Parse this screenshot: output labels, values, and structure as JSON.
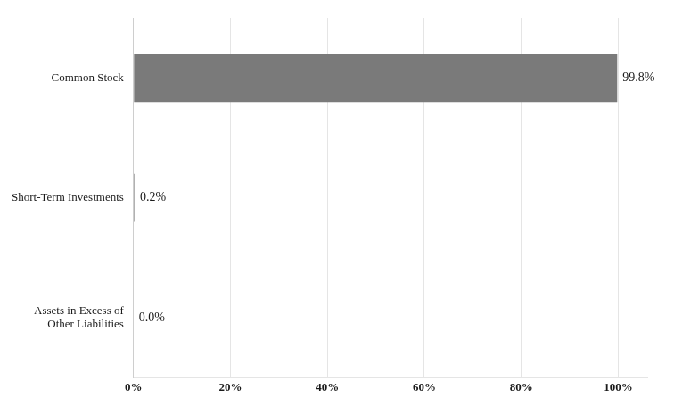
{
  "chart_data": {
    "type": "bar",
    "orientation": "horizontal",
    "categories": [
      "Common Stock",
      "Short-Term Investments",
      "Assets in Excess of\nOther Liabilities"
    ],
    "values": [
      99.8,
      0.2,
      0.0
    ],
    "value_labels": [
      "99.8%",
      "0.2%",
      "0.0%"
    ],
    "data_labels": true,
    "color": "#7a7a7a",
    "xlim": [
      0,
      106
    ],
    "xticks": [
      {
        "value": 0,
        "label": "0%"
      },
      {
        "value": 20,
        "label": "20%"
      },
      {
        "value": 40,
        "label": "40%"
      },
      {
        "value": 60,
        "label": "60%"
      },
      {
        "value": 80,
        "label": "80%"
      },
      {
        "value": 100,
        "label": "100%"
      }
    ],
    "grid": true
  }
}
